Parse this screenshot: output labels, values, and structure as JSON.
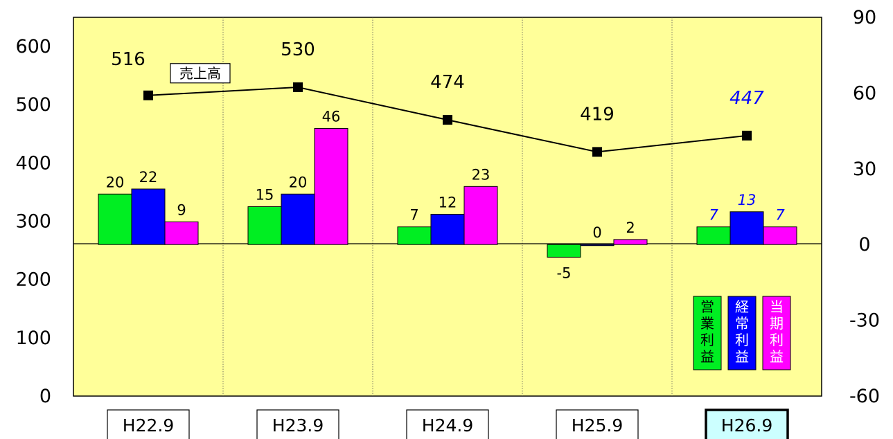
{
  "chart_data": {
    "type": "bar",
    "categories": [
      "H22.9",
      "H23.9",
      "H24.9",
      "H25.9",
      "H26.9"
    ],
    "highlighted_category": "H26.9",
    "forecast_category_index": 4,
    "left_axis": {
      "ylim": [
        0,
        650
      ],
      "ticks": [
        "0",
        "100",
        "200",
        "300",
        "400",
        "500",
        "600"
      ]
    },
    "right_axis": {
      "ylim": [
        -60,
        90
      ],
      "ticks": [
        "-60",
        "-30",
        "0",
        "30",
        "60",
        "90"
      ]
    },
    "series": [
      {
        "name": "営業利益",
        "type": "bar",
        "axis": "right",
        "color": "#00ee22",
        "values": [
          20,
          15,
          7,
          -5,
          7
        ],
        "labels": [
          "20",
          "15",
          "7",
          "-5",
          "7"
        ]
      },
      {
        "name": "経常利益",
        "type": "bar",
        "axis": "right",
        "color": "#0000ff",
        "values": [
          22,
          20,
          12,
          0,
          13
        ],
        "labels": [
          "22",
          "20",
          "12",
          "0",
          "13"
        ]
      },
      {
        "name": "当期利益",
        "type": "bar",
        "axis": "right",
        "color": "#ff00ff",
        "values": [
          9,
          46,
          23,
          2,
          7
        ],
        "labels": [
          "9",
          "46",
          "23",
          "2",
          "7"
        ]
      },
      {
        "name": "売上高",
        "type": "line",
        "axis": "left",
        "color": "#000000",
        "marker": "square",
        "values": [
          516,
          530,
          474,
          419,
          447
        ],
        "labels": [
          "516",
          "530",
          "474",
          "419",
          "447"
        ]
      }
    ],
    "legend": [
      {
        "chars": [
          "営",
          "業",
          "利",
          "益"
        ],
        "color": "#00ee22",
        "text_color": "#000000"
      },
      {
        "chars": [
          "経",
          "常",
          "利",
          "益"
        ],
        "color": "#0000ff",
        "text_color": "#ffffff"
      },
      {
        "chars": [
          "当",
          "期",
          "利",
          "益"
        ],
        "color": "#ff00ff",
        "text_color": "#ffffff"
      }
    ],
    "legend_placement": "bottom-right",
    "line_label": "売上高",
    "plot_background": "#ffff99",
    "grid": "vertical dotted separators",
    "forecast_label_color": "#0000ff",
    "highlight_box_color": "#ccffff"
  }
}
